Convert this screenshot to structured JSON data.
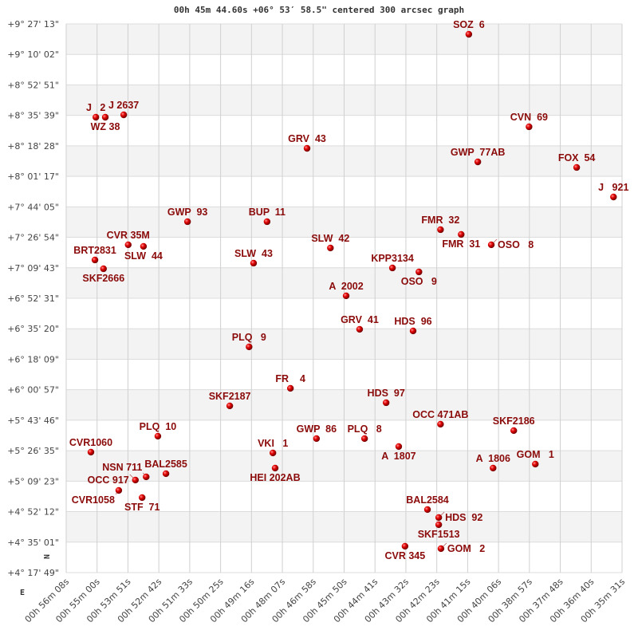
{
  "chart_data": {
    "type": "scatter",
    "title": "00h 45m 44.60s +06° 53′ 58.5\" centered 300 arcsec graph",
    "xlabel": "",
    "ylabel": "",
    "grid": true,
    "x_inverted": true,
    "xlim": [
      "00:56:08",
      "00:35:31"
    ],
    "ylim": [
      "+04:17:49",
      "+09:27:13"
    ],
    "x_ticks": [
      "00h 56m 08s",
      "00h 55m 00s",
      "00h 53m 51s",
      "00h 52m 42s",
      "00h 51m 33s",
      "00h 50m 25s",
      "00h 49m 16s",
      "00h 48m 07s",
      "00h 46m 58s",
      "00h 45m 50s",
      "00h 44m 41s",
      "00h 43m 32s",
      "00h 42m 23s",
      "00h 41m 15s",
      "00h 40m 06s",
      "00h 38m 57s",
      "00h 37m 48s",
      "00h 36m 40s",
      "00h 35m 31s"
    ],
    "y_ticks": [
      "+9° 27' 13\"",
      "+9° 10' 02\"",
      "+8° 52' 51\"",
      "+8° 35' 39\"",
      "+8° 18' 28\"",
      "+8° 01' 17\"",
      "+7° 44' 05\"",
      "+7° 26' 54\"",
      "+7° 09' 43\"",
      "+6° 52' 31\"",
      "+6° 35' 20\"",
      "+6° 18' 09\"",
      "+6° 00' 57\"",
      "+5° 43' 46\"",
      "+5° 26' 35\"",
      "+5° 09' 23\"",
      "+4° 52' 12\"",
      "+4° 35' 01\"",
      "+4° 17' 49\""
    ],
    "compass": {
      "north": "N",
      "east": "E"
    },
    "point_color": "#dd0000",
    "label_color": "#8b0a0a",
    "band_color": "#f3f3f3",
    "points": [
      {
        "name": "SOZ  6",
        "ra": "00:41:12",
        "dec": "+09:21:22"
      },
      {
        "name": "J   2",
        "ra": "00:55:02",
        "dec": "+08:34:36"
      },
      {
        "name": "WZ 38",
        "ra": "00:54:41",
        "dec": "+08:34:36"
      },
      {
        "name": "J 2637",
        "ra": "00:54:00",
        "dec": "+08:35:57"
      },
      {
        "name": "GRV  43",
        "ra": "00:47:12",
        "dec": "+08:17:04"
      },
      {
        "name": "CVN  69",
        "ra": "00:38:58",
        "dec": "+08:29:13"
      },
      {
        "name": "GWP  77AB",
        "ra": "00:40:52",
        "dec": "+08:09:25"
      },
      {
        "name": "FOX  54",
        "ra": "00:37:12",
        "dec": "+08:06:17"
      },
      {
        "name": "J   921",
        "ra": "00:35:50",
        "dec": "+07:49:38"
      },
      {
        "name": "GWP  93",
        "ra": "00:51:38",
        "dec": "+07:35:42"
      },
      {
        "name": "BUP  11",
        "ra": "00:48:41",
        "dec": "+07:35:42"
      },
      {
        "name": "CVR 35M",
        "ra": "00:53:50",
        "dec": "+07:22:40"
      },
      {
        "name": "SLW  44",
        "ra": "00:53:16",
        "dec": "+07:21:46"
      },
      {
        "name": "BRT2831",
        "ra": "00:55:04",
        "dec": "+07:14:07"
      },
      {
        "name": "SKF2666",
        "ra": "00:54:45",
        "dec": "+07:09:10"
      },
      {
        "name": "SLW  43",
        "ra": "00:49:11",
        "dec": "+07:12:19"
      },
      {
        "name": "SLW  42",
        "ra": "00:46:20",
        "dec": "+07:20:52"
      },
      {
        "name": "FMR  32",
        "ra": "00:42:15",
        "dec": "+07:31:12"
      },
      {
        "name": "FMR  31",
        "ra": "00:41:29",
        "dec": "+07:28:30"
      },
      {
        "name": "OSO   8",
        "ra": "00:40:22",
        "dec": "+07:22:40"
      },
      {
        "name": "KPP3134",
        "ra": "00:44:02",
        "dec": "+07:09:37"
      },
      {
        "name": "OSO   9",
        "ra": "00:43:03",
        "dec": "+07:07:22"
      },
      {
        "name": "A  2002",
        "ra": "00:45:45",
        "dec": "+06:53:53"
      },
      {
        "name": "GRV  41",
        "ra": "00:45:15",
        "dec": "+06:35:00"
      },
      {
        "name": "HDS  96",
        "ra": "00:43:16",
        "dec": "+06:34:06"
      },
      {
        "name": "PLQ   9",
        "ra": "00:49:21",
        "dec": "+06:25:06"
      },
      {
        "name": "FR    4",
        "ra": "00:47:49",
        "dec": "+06:01:43"
      },
      {
        "name": "SKF2187",
        "ra": "00:50:04",
        "dec": "+05:51:50"
      },
      {
        "name": "HDS  97",
        "ra": "00:44:16",
        "dec": "+05:53:37"
      },
      {
        "name": "OCC 471AB",
        "ra": "00:42:15",
        "dec": "+05:41:29"
      },
      {
        "name": "SKF2186",
        "ra": "00:39:32",
        "dec": "+05:37:53"
      },
      {
        "name": "PLQ  10",
        "ra": "00:52:44",
        "dec": "+05:34:44"
      },
      {
        "name": "CVR1060",
        "ra": "00:55:13",
        "dec": "+05:25:45"
      },
      {
        "name": "GWP  86",
        "ra": "00:46:51",
        "dec": "+05:33:23"
      },
      {
        "name": "PLQ   8",
        "ra": "00:45:04",
        "dec": "+05:33:23"
      },
      {
        "name": "A  1807",
        "ra": "00:43:48",
        "dec": "+05:28:54"
      },
      {
        "name": "VKI   1",
        "ra": "00:48:28",
        "dec": "+05:25:18"
      },
      {
        "name": "HEI 202AB",
        "ra": "00:48:23",
        "dec": "+05:16:45"
      },
      {
        "name": "A  1806",
        "ra": "00:40:18",
        "dec": "+05:16:45"
      },
      {
        "name": "GOM   1",
        "ra": "00:38:44",
        "dec": "+05:19:00"
      },
      {
        "name": "BAL2585",
        "ra": "00:52:26",
        "dec": "+05:13:36"
      },
      {
        "name": "NSN 711",
        "ra": "00:53:10",
        "dec": "+05:11:48"
      },
      {
        "name": "OCC 917",
        "ra": "00:53:34",
        "dec": "+05:10:00"
      },
      {
        "name": "CVR1058",
        "ra": "00:54:11",
        "dec": "+05:04:10"
      },
      {
        "name": "STF  71",
        "ra": "00:53:19",
        "dec": "+05:00:07"
      },
      {
        "name": "BAL2584",
        "ra": "00:42:44",
        "dec": "+04:53:22"
      },
      {
        "name": "HDS  92",
        "ra": "00:42:19",
        "dec": "+04:48:52"
      },
      {
        "name": "SKF1513",
        "ra": "00:42:19",
        "dec": "+04:44:50"
      },
      {
        "name": "CVR 345",
        "ra": "00:43:34",
        "dec": "+04:32:41"
      },
      {
        "name": "GOM   2",
        "ra": "00:42:14",
        "dec": "+04:31:20"
      }
    ]
  }
}
